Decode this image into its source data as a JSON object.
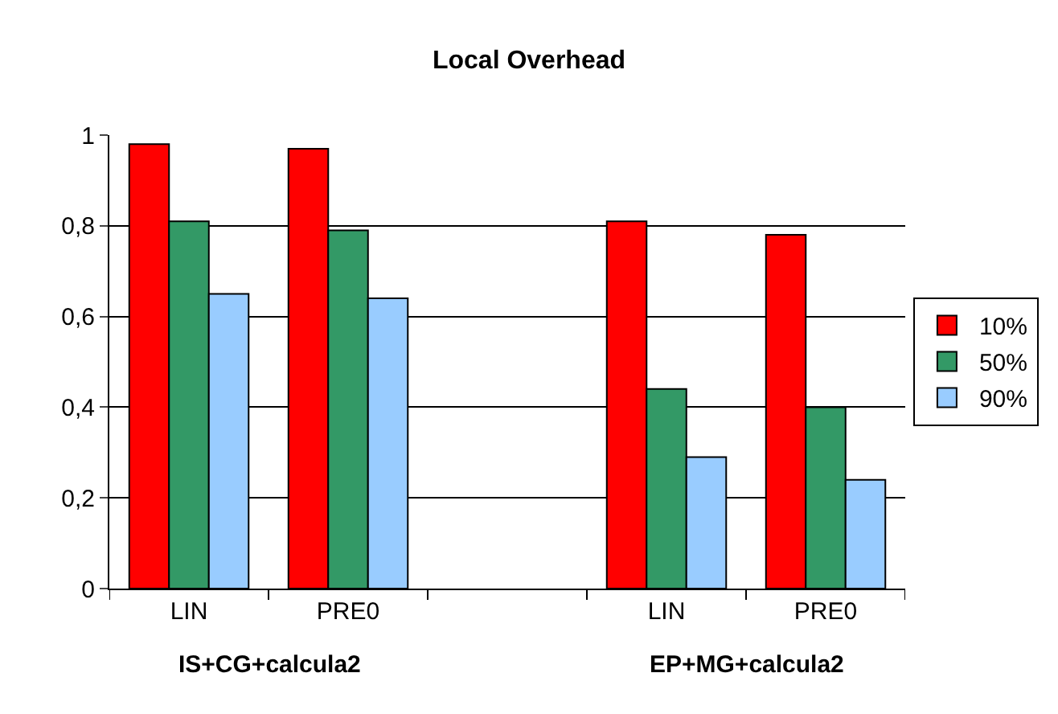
{
  "chart_data": {
    "type": "bar",
    "title": "Local Overhead",
    "categories": [
      "LIN",
      "PRE0",
      null,
      "LIN",
      "PRE0"
    ],
    "series": [
      {
        "name": "10%",
        "color": "#ff0000",
        "values": [
          0.98,
          0.97,
          null,
          0.81,
          0.78
        ]
      },
      {
        "name": "50%",
        "color": "#339966",
        "values": [
          0.81,
          0.79,
          null,
          0.44,
          0.4
        ]
      },
      {
        "name": "90%",
        "color": "#99ccff",
        "values": [
          0.65,
          0.64,
          null,
          0.29,
          0.24
        ]
      }
    ],
    "ylim": [
      0,
      1
    ],
    "yticks": [
      0,
      {
        "value": 0.2,
        "label": "0,2"
      },
      {
        "value": 0.4,
        "label": "0,4"
      },
      {
        "value": 0.6,
        "label": "0,6"
      },
      {
        "value": 0.8,
        "label": "0,8"
      },
      1
    ],
    "grid": "y",
    "legend": "right",
    "annotations": [
      "IS+CG+calcula2",
      "EP+MG+calcula2"
    ]
  }
}
